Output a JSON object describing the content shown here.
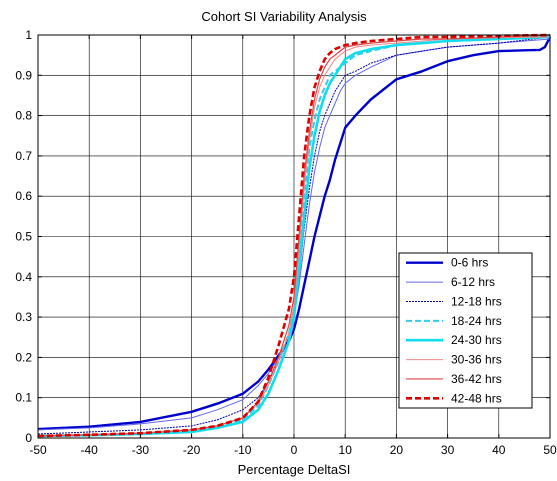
{
  "chart_data": {
    "type": "line",
    "title": "Cohort SI Variability Analysis",
    "xlabel": "Percentage DeltaSI",
    "ylabel": "",
    "xlim": [
      -50,
      50
    ],
    "ylim": [
      0,
      1
    ],
    "xticks": [
      -50,
      -40,
      -30,
      -20,
      -10,
      0,
      10,
      20,
      30,
      40,
      50
    ],
    "yticks": [
      0,
      0.1,
      0.2,
      0.3,
      0.4,
      0.5,
      0.6,
      0.7,
      0.8,
      0.9,
      1
    ],
    "grid": true,
    "legend_position": "right",
    "series": [
      {
        "name": "0-6 hrs",
        "color": "#0000cc",
        "width": 2.4,
        "dash": "solid",
        "x": [
          -50,
          -40,
          -30,
          -20,
          -15,
          -10,
          -7,
          -5,
          -3,
          -1,
          0,
          1,
          2,
          3,
          4,
          5,
          6,
          7,
          8,
          9,
          10,
          12,
          15,
          20,
          25,
          30,
          35,
          40,
          45,
          48,
          49,
          50
        ],
        "y": [
          0.022,
          0.028,
          0.04,
          0.065,
          0.085,
          0.11,
          0.14,
          0.17,
          0.205,
          0.24,
          0.27,
          0.32,
          0.38,
          0.44,
          0.5,
          0.55,
          0.6,
          0.64,
          0.69,
          0.73,
          0.77,
          0.8,
          0.84,
          0.89,
          0.91,
          0.935,
          0.95,
          0.96,
          0.962,
          0.963,
          0.97,
          0.995
        ]
      },
      {
        "name": "6-12 hrs",
        "color": "#6666ee",
        "width": 1,
        "dash": "solid",
        "x": [
          -50,
          -40,
          -30,
          -20,
          -15,
          -10,
          -7,
          -5,
          -3,
          -1,
          0,
          1,
          2,
          3,
          4,
          5,
          6,
          7,
          8,
          9,
          10,
          12,
          15,
          20,
          25,
          30,
          40,
          50
        ],
        "y": [
          0.02,
          0.025,
          0.035,
          0.05,
          0.07,
          0.095,
          0.13,
          0.16,
          0.2,
          0.25,
          0.3,
          0.38,
          0.48,
          0.58,
          0.66,
          0.72,
          0.77,
          0.8,
          0.83,
          0.86,
          0.88,
          0.9,
          0.92,
          0.95,
          0.96,
          0.97,
          0.98,
          0.99
        ]
      },
      {
        "name": "12-18 hrs",
        "color": "#0000aa",
        "width": 1,
        "dash": "2,1",
        "x": [
          -50,
          -40,
          -30,
          -20,
          -15,
          -10,
          -7,
          -5,
          -3,
          -1,
          0,
          1,
          2,
          3,
          4,
          5,
          6,
          7,
          8,
          9,
          10,
          12,
          15,
          20,
          25,
          30,
          40,
          50
        ],
        "y": [
          0.01,
          0.015,
          0.02,
          0.03,
          0.045,
          0.07,
          0.1,
          0.14,
          0.19,
          0.25,
          0.3,
          0.4,
          0.52,
          0.62,
          0.7,
          0.76,
          0.8,
          0.83,
          0.86,
          0.88,
          0.9,
          0.91,
          0.93,
          0.95,
          0.96,
          0.97,
          0.98,
          0.995
        ]
      },
      {
        "name": "18-24 hrs",
        "color": "#33ccee",
        "width": 2,
        "dash": "6,3",
        "x": [
          -50,
          -40,
          -30,
          -20,
          -15,
          -10,
          -7,
          -5,
          -3,
          -1,
          0,
          1,
          2,
          3,
          4,
          5,
          6,
          7,
          8,
          9,
          10,
          12,
          15,
          20,
          25,
          30,
          40,
          50
        ],
        "y": [
          0.005,
          0.008,
          0.01,
          0.015,
          0.025,
          0.045,
          0.08,
          0.13,
          0.19,
          0.26,
          0.32,
          0.45,
          0.6,
          0.72,
          0.79,
          0.84,
          0.87,
          0.9,
          0.91,
          0.92,
          0.93,
          0.95,
          0.96,
          0.975,
          0.98,
          0.985,
          0.99,
          1.0
        ]
      },
      {
        "name": "24-30 hrs",
        "color": "#11ddee",
        "width": 2.6,
        "dash": "solid",
        "x": [
          -50,
          -40,
          -30,
          -20,
          -15,
          -10,
          -7,
          -5,
          -3,
          -1,
          0,
          1,
          2,
          3,
          4,
          5,
          6,
          7,
          8,
          9,
          10,
          12,
          15,
          20,
          25,
          30,
          40,
          50
        ],
        "y": [
          0.005,
          0.007,
          0.01,
          0.015,
          0.025,
          0.04,
          0.07,
          0.11,
          0.17,
          0.24,
          0.3,
          0.42,
          0.55,
          0.67,
          0.75,
          0.81,
          0.85,
          0.88,
          0.9,
          0.92,
          0.94,
          0.955,
          0.965,
          0.975,
          0.98,
          0.985,
          0.99,
          0.995
        ]
      },
      {
        "name": "30-36 hrs",
        "color": "#ee8888",
        "width": 1,
        "dash": "solid",
        "x": [
          -50,
          -40,
          -30,
          -20,
          -15,
          -10,
          -7,
          -5,
          -3,
          -1,
          0,
          1,
          2,
          3,
          4,
          5,
          6,
          7,
          8,
          9,
          10,
          12,
          15,
          20,
          25,
          30,
          40,
          50
        ],
        "y": [
          0.005,
          0.008,
          0.012,
          0.02,
          0.03,
          0.05,
          0.085,
          0.13,
          0.19,
          0.26,
          0.33,
          0.47,
          0.62,
          0.74,
          0.82,
          0.87,
          0.9,
          0.92,
          0.94,
          0.95,
          0.96,
          0.97,
          0.975,
          0.98,
          0.985,
          0.99,
          0.993,
          0.995
        ]
      },
      {
        "name": "36-42 hrs",
        "color": "#dd4444",
        "width": 1.2,
        "dash": "solid",
        "x": [
          -50,
          -40,
          -30,
          -20,
          -15,
          -10,
          -7,
          -5,
          -3,
          -1,
          0,
          1,
          2,
          3,
          4,
          5,
          6,
          7,
          8,
          9,
          10,
          12,
          15,
          20,
          25,
          30,
          40,
          50
        ],
        "y": [
          0.005,
          0.008,
          0.012,
          0.02,
          0.03,
          0.05,
          0.09,
          0.14,
          0.2,
          0.28,
          0.35,
          0.5,
          0.65,
          0.76,
          0.84,
          0.89,
          0.92,
          0.94,
          0.95,
          0.96,
          0.97,
          0.975,
          0.98,
          0.985,
          0.99,
          0.99,
          0.995,
          1.0
        ]
      },
      {
        "name": "42-48 hrs",
        "color": "#dd0000",
        "width": 2.6,
        "dash": "6,3",
        "x": [
          -50,
          -40,
          -30,
          -20,
          -15,
          -10,
          -7,
          -5,
          -3,
          -1,
          0,
          1,
          2,
          3,
          4,
          5,
          6,
          7,
          8,
          9,
          10,
          12,
          15,
          20,
          25,
          30,
          40,
          50
        ],
        "y": [
          0.005,
          0.008,
          0.012,
          0.02,
          0.03,
          0.05,
          0.09,
          0.15,
          0.23,
          0.32,
          0.4,
          0.55,
          0.7,
          0.8,
          0.87,
          0.91,
          0.94,
          0.955,
          0.965,
          0.97,
          0.975,
          0.98,
          0.985,
          0.99,
          0.995,
          0.995,
          0.998,
          1.0
        ]
      }
    ]
  }
}
